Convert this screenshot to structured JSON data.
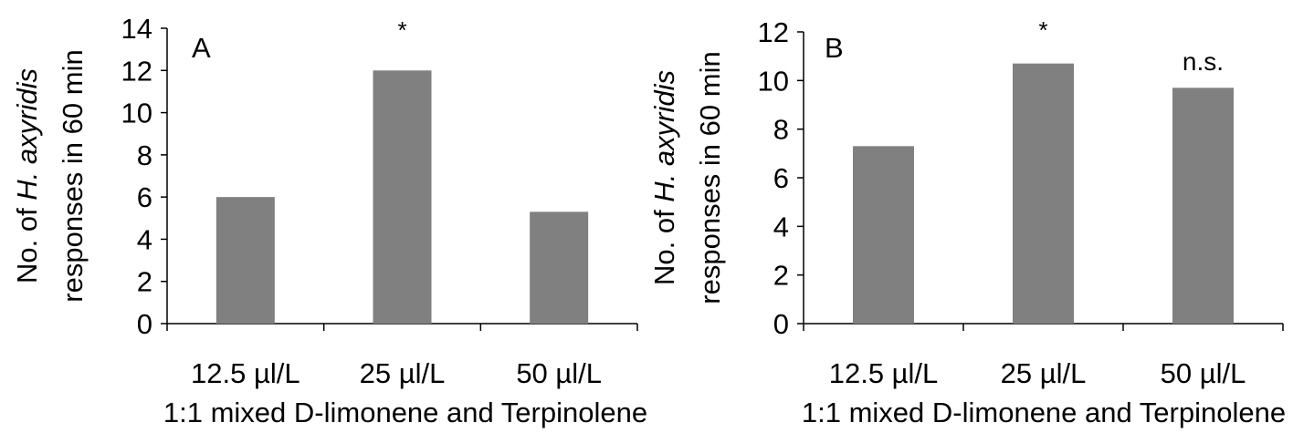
{
  "chart_data": [
    {
      "type": "bar",
      "panel_label": "A",
      "categories": [
        "12.5 µl/L",
        "25 µl/L",
        "50 µl/L"
      ],
      "values": [
        6,
        12,
        5.3
      ],
      "significance": [
        "",
        "*",
        ""
      ],
      "xlabel": "1:1 mixed D-limonene and Terpinolene",
      "ylabel_line1_prefix": "No. of ",
      "ylabel_line1_italic": "H. axyridis",
      "ylabel_line2": "responses in 60 min",
      "ylim": [
        0,
        14
      ],
      "yticks": [
        0,
        2,
        4,
        6,
        8,
        10,
        12,
        14
      ],
      "grid": false,
      "bar_color": "#808080"
    },
    {
      "type": "bar",
      "panel_label": "B",
      "categories": [
        "12.5 µl/L",
        "25 µl/L",
        "50 µl/L"
      ],
      "values": [
        7.3,
        10.7,
        9.7
      ],
      "significance": [
        "",
        "*",
        "n.s."
      ],
      "xlabel": "1:1 mixed D-limonene and Terpinolene",
      "ylabel_line1_prefix": "No. of ",
      "ylabel_line1_italic": "H. axyridis",
      "ylabel_line2": "responses in 60 min",
      "ylim": [
        0,
        12
      ],
      "yticks": [
        0,
        2,
        4,
        6,
        8,
        10,
        12
      ],
      "grid": false,
      "bar_color": "#808080"
    }
  ]
}
